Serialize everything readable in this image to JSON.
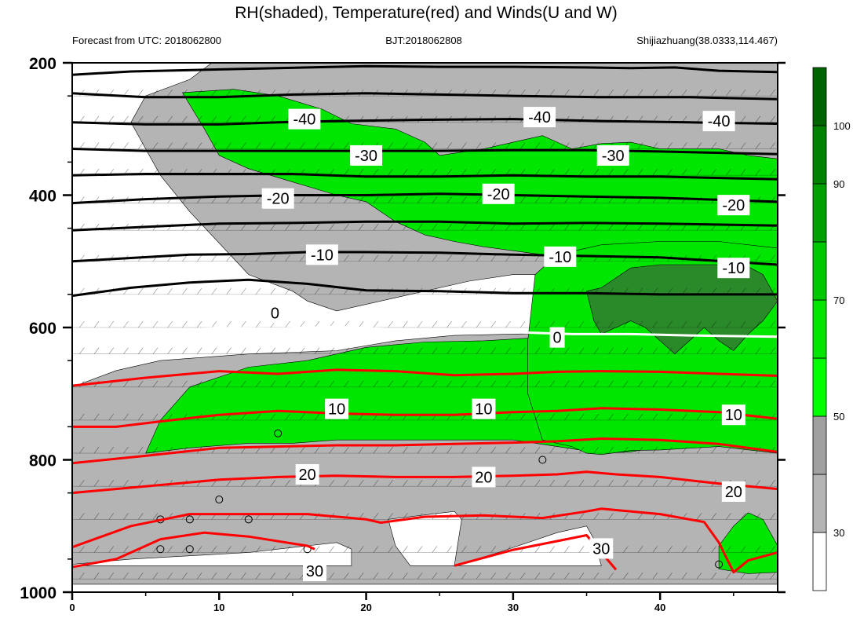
{
  "chart_data": {
    "type": "contour",
    "title": "RH(shaded), Temperature(red) and Winds(U and W)",
    "subtitle_left": "Forecast from UTC: 2018062800",
    "subtitle_center": "BJT:2018062808",
    "subtitle_right": "Shijiazhuang(38.0333,114.467)",
    "x_range": [
      0,
      48
    ],
    "y_range": [
      200,
      1000
    ],
    "y_reversed": true,
    "x_ticks": [
      "0",
      "10",
      "20",
      "30",
      "40"
    ],
    "y_ticks": [
      "200",
      "400",
      "600",
      "800",
      "1000"
    ],
    "colorbar": {
      "labels": [
        "30",
        "50",
        "70",
        "90",
        "100"
      ],
      "levels": [
        30,
        40,
        50,
        60,
        70,
        80,
        90,
        100
      ],
      "colors": [
        "#ffffff",
        "#b4b4b4",
        "#a0a0a0",
        "#00ff00",
        "#00e600",
        "#00c800",
        "#00a000",
        "#008200",
        "#006400"
      ]
    },
    "rh_colors": {
      "grey": "#b4b4b4",
      "light_green": "#00e600",
      "mid_green": "#00c800",
      "dark_green": "#2a8a2a"
    },
    "isotherm_colors": {
      "cold": "#000000",
      "zero": "#ffffff",
      "warm": "#ff0000"
    },
    "temperature_labels": [
      {
        "text": "-40",
        "x": 15.8,
        "p": 285
      },
      {
        "text": "-40",
        "x": 31.8,
        "p": 282
      },
      {
        "text": "-40",
        "x": 44.0,
        "p": 288
      },
      {
        "text": "-30",
        "x": 20.0,
        "p": 340
      },
      {
        "text": "-30",
        "x": 36.8,
        "p": 340
      },
      {
        "text": "-20",
        "x": 14.0,
        "p": 405
      },
      {
        "text": "-20",
        "x": 29.0,
        "p": 398
      },
      {
        "text": "-20",
        "x": 45.0,
        "p": 415
      },
      {
        "text": "-10",
        "x": 17.0,
        "p": 490
      },
      {
        "text": "-10",
        "x": 33.2,
        "p": 493
      },
      {
        "text": "-10",
        "x": 45.0,
        "p": 510
      },
      {
        "text": "0",
        "x": 13.8,
        "p": 578
      },
      {
        "text": "0",
        "x": 33.0,
        "p": 615
      },
      {
        "text": "10",
        "x": 18.0,
        "p": 723
      },
      {
        "text": "10",
        "x": 28.0,
        "p": 723
      },
      {
        "text": "10",
        "x": 45.0,
        "p": 732
      },
      {
        "text": "20",
        "x": 16.0,
        "p": 822
      },
      {
        "text": "20",
        "x": 28.0,
        "p": 826
      },
      {
        "text": "20",
        "x": 45.0,
        "p": 848
      },
      {
        "text": "30",
        "x": 36.0,
        "p": 934
      },
      {
        "text": "30",
        "x": 16.5,
        "p": 968
      }
    ],
    "isotherms": [
      {
        "t": -50,
        "pts": [
          [
            0,
            218
          ],
          [
            4,
            213
          ],
          [
            10,
            210
          ],
          [
            16,
            207
          ],
          [
            20,
            205
          ],
          [
            25,
            206
          ],
          [
            30,
            206
          ],
          [
            35,
            207
          ],
          [
            38,
            208
          ],
          [
            41,
            207
          ],
          [
            44,
            212
          ],
          [
            48,
            214
          ]
        ]
      },
      {
        "t": -45,
        "pts": [
          [
            0,
            246
          ],
          [
            5,
            252
          ],
          [
            10,
            252
          ],
          [
            15,
            248
          ],
          [
            20,
            246
          ],
          [
            25,
            248
          ],
          [
            30,
            250
          ],
          [
            36,
            252
          ],
          [
            42,
            252
          ],
          [
            48,
            255
          ]
        ]
      },
      {
        "t": -40,
        "pts": [
          [
            0,
            290
          ],
          [
            5,
            293
          ],
          [
            10,
            293
          ],
          [
            14,
            290
          ],
          [
            18,
            288
          ],
          [
            24,
            286
          ],
          [
            30,
            285
          ],
          [
            36,
            288
          ],
          [
            42,
            290
          ],
          [
            48,
            292
          ]
        ]
      },
      {
        "t": -35,
        "pts": [
          [
            0,
            330
          ],
          [
            5,
            333
          ],
          [
            10,
            333
          ],
          [
            15,
            333
          ],
          [
            20,
            333
          ],
          [
            25,
            333
          ],
          [
            30,
            332
          ],
          [
            35,
            332
          ],
          [
            40,
            334
          ],
          [
            48,
            338
          ]
        ]
      },
      {
        "t": -25,
        "pts": [
          [
            0,
            370
          ],
          [
            5,
            368
          ],
          [
            10,
            368
          ],
          [
            15,
            368
          ],
          [
            20,
            372
          ],
          [
            25,
            372
          ],
          [
            30,
            370
          ],
          [
            35,
            372
          ],
          [
            40,
            372
          ],
          [
            48,
            376
          ]
        ]
      },
      {
        "t": -20,
        "pts": [
          [
            0,
            412
          ],
          [
            5,
            406
          ],
          [
            10,
            402
          ],
          [
            15,
            400
          ],
          [
            20,
            400
          ],
          [
            25,
            398
          ],
          [
            30,
            400
          ],
          [
            35,
            402
          ],
          [
            40,
            404
          ],
          [
            48,
            410
          ]
        ]
      },
      {
        "t": -15,
        "pts": [
          [
            0,
            453
          ],
          [
            5,
            448
          ],
          [
            10,
            443
          ],
          [
            15,
            442
          ],
          [
            20,
            440
          ],
          [
            25,
            440
          ],
          [
            30,
            443
          ],
          [
            35,
            442
          ],
          [
            40,
            443
          ],
          [
            48,
            446
          ]
        ]
      },
      {
        "t": -10,
        "pts": [
          [
            0,
            500
          ],
          [
            4,
            495
          ],
          [
            8,
            490
          ],
          [
            12,
            489
          ],
          [
            16,
            486
          ],
          [
            20,
            486
          ],
          [
            25,
            487
          ],
          [
            30,
            490
          ],
          [
            35,
            492
          ],
          [
            40,
            494
          ],
          [
            48,
            505
          ]
        ]
      },
      {
        "t": -5,
        "pts": [
          [
            0,
            552
          ],
          [
            4,
            540
          ],
          [
            8,
            532
          ],
          [
            12,
            528
          ],
          [
            16,
            534
          ],
          [
            20,
            544
          ],
          [
            25,
            545
          ],
          [
            30,
            548
          ],
          [
            35,
            548
          ],
          [
            40,
            550
          ],
          [
            48,
            550
          ]
        ]
      },
      {
        "t": 0,
        "pts": [
          [
            0,
            618
          ],
          [
            2,
            612
          ],
          [
            6,
            605
          ],
          [
            10,
            601
          ],
          [
            14,
            602
          ],
          [
            18,
            599
          ],
          [
            22,
            603
          ],
          [
            26,
            606
          ],
          [
            30,
            607
          ],
          [
            34,
            610
          ],
          [
            38,
            610
          ],
          [
            42,
            612
          ],
          [
            48,
            614
          ]
        ]
      },
      {
        "t": 5,
        "pts": [
          [
            0,
            688
          ],
          [
            5,
            676
          ],
          [
            10,
            666
          ],
          [
            14,
            670
          ],
          [
            18,
            664
          ],
          [
            22,
            666
          ],
          [
            26,
            672
          ],
          [
            30,
            670
          ],
          [
            33,
            667
          ],
          [
            36,
            666
          ],
          [
            40,
            667
          ],
          [
            44,
            670
          ],
          [
            48,
            673
          ]
        ]
      },
      {
        "t": 10,
        "pts": [
          [
            0,
            750
          ],
          [
            3,
            750
          ],
          [
            6,
            742
          ],
          [
            10,
            732
          ],
          [
            14,
            726
          ],
          [
            18,
            730
          ],
          [
            22,
            732
          ],
          [
            26,
            732
          ],
          [
            30,
            728
          ],
          [
            33,
            726
          ],
          [
            36,
            722
          ],
          [
            40,
            724
          ],
          [
            44,
            728
          ],
          [
            48,
            738
          ]
        ]
      },
      {
        "t": 15,
        "pts": [
          [
            0,
            805
          ],
          [
            5,
            794
          ],
          [
            10,
            782
          ],
          [
            14,
            780
          ],
          [
            18,
            778
          ],
          [
            22,
            778
          ],
          [
            26,
            776
          ],
          [
            30,
            774
          ],
          [
            33,
            772
          ],
          [
            36,
            768
          ],
          [
            40,
            770
          ],
          [
            44,
            776
          ],
          [
            48,
            788
          ]
        ]
      },
      {
        "t": 20,
        "pts": [
          [
            0,
            850
          ],
          [
            5,
            840
          ],
          [
            10,
            830
          ],
          [
            14,
            826
          ],
          [
            18,
            824
          ],
          [
            22,
            826
          ],
          [
            26,
            826
          ],
          [
            30,
            824
          ],
          [
            33,
            822
          ],
          [
            35,
            818
          ],
          [
            37,
            822
          ],
          [
            40,
            826
          ],
          [
            44,
            836
          ],
          [
            48,
            844
          ]
        ]
      },
      {
        "t": 25,
        "pts": [
          [
            0,
            932
          ],
          [
            4,
            900
          ],
          [
            8,
            882
          ],
          [
            12,
            882
          ],
          [
            16,
            882
          ],
          [
            20,
            890
          ],
          [
            21,
            895
          ],
          [
            24,
            886
          ],
          [
            28,
            884
          ],
          [
            32,
            888
          ],
          [
            35,
            878
          ],
          [
            36,
            874
          ],
          [
            40,
            882
          ],
          [
            43,
            894
          ],
          [
            44,
            925
          ],
          [
            45,
            970
          ],
          [
            46,
            952
          ],
          [
            48,
            940
          ]
        ]
      },
      {
        "t": 30,
        "pts": [
          [
            0,
            962
          ],
          [
            3,
            950
          ],
          [
            6,
            920
          ],
          [
            9,
            910
          ],
          [
            12,
            916
          ],
          [
            16,
            930
          ],
          [
            16.5,
            935
          ]
        ]
      },
      {
        "t": 30,
        "pts": [
          [
            26,
            960
          ],
          [
            30,
            936
          ],
          [
            35,
            914
          ],
          [
            37,
            966
          ]
        ]
      }
    ],
    "wind_barb_rows": [
      250,
      290,
      330,
      370,
      412,
      453,
      500,
      550,
      600,
      640,
      690,
      740,
      790,
      840,
      890,
      940,
      980
    ],
    "calm_points": [
      [
        6,
        890
      ],
      [
        8,
        890
      ],
      [
        12,
        890
      ],
      [
        6,
        935
      ],
      [
        8,
        935
      ],
      [
        16,
        935
      ],
      [
        10,
        860
      ],
      [
        14,
        760
      ],
      [
        32,
        800
      ],
      [
        44,
        958
      ]
    ]
  }
}
